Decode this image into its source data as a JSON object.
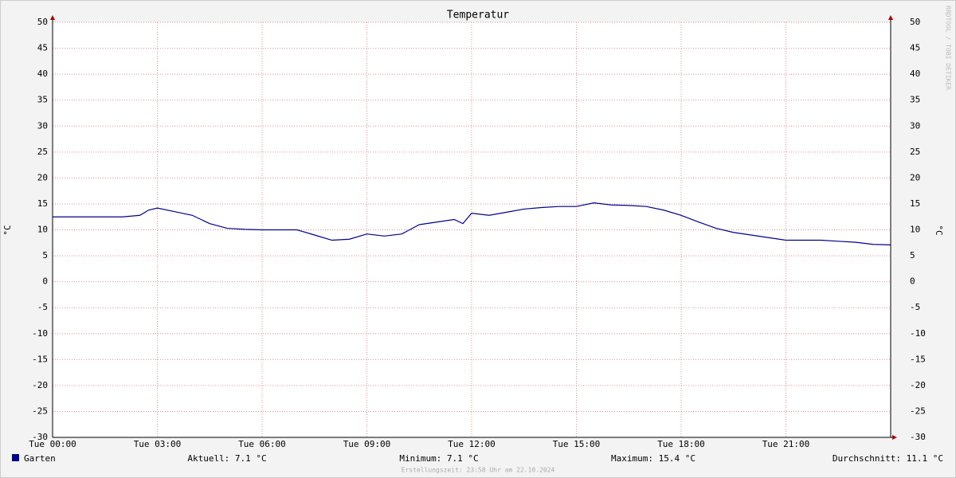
{
  "chart_data": {
    "type": "line",
    "title": "Temperatur",
    "y_label": "°C",
    "y2_label": "°C",
    "watermark": "RRDTOOL / TOBI OETIKER",
    "x": [
      0,
      0.5,
      1,
      1.5,
      2,
      2.5,
      2.75,
      3,
      3.5,
      4,
      4.5,
      5,
      5.5,
      6,
      6.5,
      7,
      7.5,
      8,
      8.5,
      9,
      9.5,
      10,
      10.5,
      11,
      11.5,
      11.75,
      12,
      12.5,
      13,
      13.5,
      14,
      14.5,
      15,
      15.5,
      16,
      16.5,
      17,
      17.5,
      18,
      18.5,
      19,
      19.5,
      20,
      20.5,
      21,
      21.5,
      22,
      22.5,
      23,
      23.5,
      24
    ],
    "series": [
      {
        "name": "Garten",
        "color": "#00008b",
        "values": [
          12.5,
          12.5,
          12.5,
          12.5,
          12.5,
          12.8,
          13.8,
          14.2,
          13.5,
          12.8,
          11.2,
          10.3,
          10.1,
          10.0,
          10.0,
          10.0,
          9.0,
          8.0,
          8.2,
          9.2,
          8.8,
          9.2,
          11.0,
          11.5,
          12.0,
          11.2,
          13.2,
          12.8,
          13.4,
          14.0,
          14.3,
          14.5,
          14.5,
          15.2,
          14.8,
          14.7,
          14.5,
          13.8,
          12.8,
          11.5,
          10.3,
          9.5,
          9.0,
          8.5,
          8.0,
          8.0,
          8.0,
          7.8,
          7.6,
          7.2,
          7.1
        ]
      }
    ],
    "xlim": [
      0,
      24
    ],
    "xticks": [
      {
        "value": 0,
        "label": "Tue 00:00"
      },
      {
        "value": 3,
        "label": "Tue 03:00"
      },
      {
        "value": 6,
        "label": "Tue 06:00"
      },
      {
        "value": 9,
        "label": "Tue 09:00"
      },
      {
        "value": 12,
        "label": "Tue 12:00"
      },
      {
        "value": 15,
        "label": "Tue 15:00"
      },
      {
        "value": 18,
        "label": "Tue 18:00"
      },
      {
        "value": 21,
        "label": "Tue 21:00"
      }
    ],
    "ylim": [
      -30,
      50
    ],
    "yticks": [
      -30,
      -25,
      -20,
      -15,
      -10,
      -5,
      0,
      5,
      10,
      15,
      20,
      25,
      30,
      35,
      40,
      45,
      50
    ],
    "grid": true,
    "stats": [
      "Aktuell: 7.1 °C",
      "Minimum: 7.1 °C",
      "Maximum: 15.4 °C",
      "Durchschnitt: 11.1 °C"
    ],
    "footer": "Erstellungszeit: 23:58 Uhr am 22.10.2024"
  }
}
